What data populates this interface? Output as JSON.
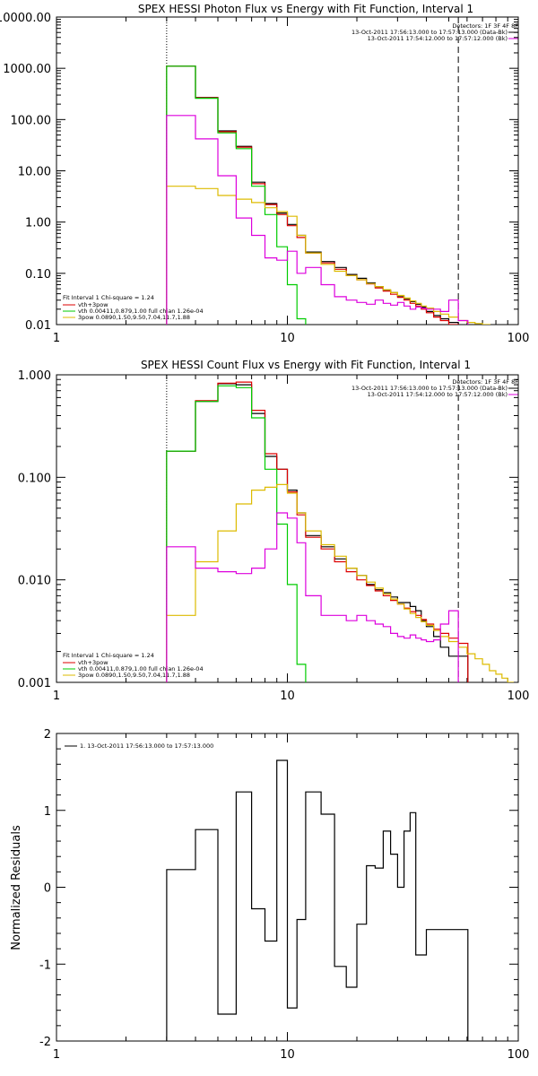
{
  "chart_data": [
    {
      "type": "line",
      "title": "SPEX HESSI Photon Flux vs Energy with Fit Function, Interval 1",
      "xscale": "log",
      "yscale": "log",
      "xlim": [
        1,
        100
      ],
      "ylim": [
        0.01,
        10000
      ],
      "xticks": [
        1,
        10,
        100
      ],
      "xtick_labels": [
        "1",
        "10",
        "100"
      ],
      "yticks": [
        0.01,
        0.1,
        1,
        10,
        100,
        1000,
        10000
      ],
      "ytick_labels": [
        "0.01",
        "0.10",
        "1.00",
        "10.00",
        "100.00",
        "1000.00",
        "10000.00"
      ],
      "vlines": [
        {
          "x": 3,
          "style": "dotted"
        },
        {
          "x": 55,
          "style": "dashed"
        }
      ],
      "legend_top_right": [
        "Detectors: 1F 3F 4F 8F",
        "13-Oct-2011 17:56:13.000 to 17:57:13.000 (Data-Bk)",
        "13-Oct-2011 17:54:12.000 to 17:57:12.000 (Bk)"
      ],
      "legend_bottom_left": [
        "Fit Interval 1   Chi-square = 1.24",
        "vth+3pow",
        "vth 0.00411,0.879,1.00   full chian 1.26e-04",
        "3pow 0.0890,1.50,9.50,7.04,11.7,1.88"
      ],
      "series": [
        {
          "name": "13-Oct-2011 17:56:13.000 to 17:57:13.000 (Data-Bk)",
          "color": "#000000",
          "x": [
            3,
            4,
            5,
            6,
            7,
            8,
            9,
            10,
            11,
            12,
            14,
            16,
            18,
            20,
            22,
            24,
            26,
            28,
            30,
            32,
            34,
            36,
            38,
            40,
            43,
            46,
            50,
            55
          ],
          "y": [
            1100,
            270,
            60,
            30,
            6.0,
            2.3,
            1.5,
            0.9,
            0.55,
            0.26,
            0.17,
            0.13,
            0.095,
            0.08,
            0.065,
            0.055,
            0.047,
            0.042,
            0.036,
            0.032,
            0.028,
            0.025,
            0.022,
            0.018,
            0.015,
            0.013,
            0.011,
            0.009
          ]
        },
        {
          "name": "vth+3pow",
          "color": "#dd0000",
          "x": [
            3,
            4,
            5,
            6,
            7,
            8,
            9,
            10,
            11,
            12,
            14,
            16,
            18,
            20,
            22,
            24,
            26,
            28,
            30,
            32,
            34,
            36,
            38,
            40,
            43,
            46,
            50,
            55
          ],
          "y": [
            1100,
            265,
            58,
            29,
            5.6,
            2.2,
            1.4,
            0.85,
            0.5,
            0.25,
            0.16,
            0.12,
            0.09,
            0.075,
            0.062,
            0.052,
            0.045,
            0.039,
            0.034,
            0.03,
            0.026,
            0.023,
            0.02,
            0.017,
            0.014,
            0.012,
            0.01,
            0.009
          ]
        },
        {
          "name": "vth 0.00411,0.879,1.00   full chian 1.26e-04",
          "color": "#00cc00",
          "x": [
            3,
            4,
            5,
            6,
            7,
            8,
            9,
            10,
            11,
            12
          ],
          "y": [
            1100,
            260,
            55,
            27,
            5.0,
            1.4,
            0.33,
            0.06,
            0.013,
            0.005
          ]
        },
        {
          "name": "3pow 0.0890,1.50,9.50,7.04,11.7,1.88",
          "color": "#ddbb00",
          "x": [
            3,
            4,
            5,
            6,
            7,
            8,
            9,
            10,
            11,
            12,
            14,
            16,
            18,
            20,
            22,
            24,
            26,
            28,
            30,
            32,
            34,
            36,
            38,
            40,
            43,
            46,
            50,
            55,
            60,
            65,
            70
          ],
          "y": [
            5.0,
            4.5,
            3.3,
            2.8,
            2.4,
            1.9,
            1.6,
            1.3,
            0.55,
            0.25,
            0.15,
            0.11,
            0.09,
            0.075,
            0.063,
            0.055,
            0.048,
            0.042,
            0.037,
            0.033,
            0.029,
            0.026,
            0.023,
            0.021,
            0.018,
            0.016,
            0.014,
            0.012,
            0.011,
            0.0105,
            0.01
          ]
        },
        {
          "name": "13-Oct-2011 17:54:12.000 to 17:57:12.000 (Bk)",
          "color": "#dd00dd",
          "x": [
            3,
            4,
            5,
            6,
            7,
            8,
            9,
            10,
            11,
            12,
            14,
            16,
            18,
            20,
            22,
            24,
            26,
            28,
            30,
            32,
            34,
            36,
            38,
            40,
            43,
            46,
            50,
            55
          ],
          "y": [
            120,
            42,
            8.0,
            1.2,
            0.55,
            0.2,
            0.18,
            0.27,
            0.1,
            0.13,
            0.06,
            0.035,
            0.03,
            0.027,
            0.025,
            0.03,
            0.026,
            0.024,
            0.027,
            0.023,
            0.02,
            0.022,
            0.021,
            0.02,
            0.02,
            0.018,
            0.03,
            0.012
          ]
        }
      ]
    },
    {
      "type": "line",
      "title": "SPEX HESSI Count Flux vs Energy with Fit Function, Interval 1",
      "xscale": "log",
      "yscale": "log",
      "xlim": [
        1,
        100
      ],
      "ylim": [
        0.001,
        1.0
      ],
      "xticks": [
        1,
        10,
        100
      ],
      "xtick_labels": [
        "1",
        "10",
        "100"
      ],
      "yticks": [
        0.001,
        0.01,
        0.1,
        1.0
      ],
      "ytick_labels": [
        "0.001",
        "0.010",
        "0.100",
        "1.000"
      ],
      "vlines": [
        {
          "x": 3,
          "style": "dotted"
        },
        {
          "x": 55,
          "style": "dashed"
        }
      ],
      "legend_top_right": [
        "Detectors: 1F 3F 4F 8F",
        "13-Oct-2011 17:56:13.000 to 17:57:13.000 (Data-Bk)",
        "13-Oct-2011 17:54:12.000 to 17:57:12.000 (Bk)"
      ],
      "legend_bottom_left": [
        "Fit Interval 1   Chi-square = 1.24",
        "vth+3pow",
        "vth 0.00411,0.879,1.00   full chian 1.26e-04",
        "3pow 0.0890,1.50,9.50,7.04,11.7,1.88"
      ],
      "series": [
        {
          "name": "13-Oct-2011 17:56:13.000 to 17:57:13.000 (Data-Bk)",
          "color": "#000000",
          "x": [
            3,
            4,
            5,
            6,
            7,
            8,
            9,
            10,
            11,
            12,
            14,
            16,
            18,
            20,
            22,
            24,
            26,
            28,
            30,
            32,
            34,
            36,
            38,
            40,
            43,
            46,
            50,
            55
          ],
          "y": [
            0.18,
            0.55,
            0.82,
            0.8,
            0.42,
            0.16,
            0.12,
            0.075,
            0.045,
            0.027,
            0.021,
            0.016,
            0.013,
            0.011,
            0.009,
            0.008,
            0.0075,
            0.0068,
            0.006,
            0.006,
            0.0055,
            0.005,
            0.004,
            0.0035,
            0.0028,
            0.0022,
            0.0018,
            0.0018
          ]
        },
        {
          "name": "vth+3pow",
          "color": "#dd0000",
          "x": [
            3,
            4,
            5,
            6,
            7,
            8,
            9,
            10,
            11,
            12,
            14,
            16,
            18,
            20,
            22,
            24,
            26,
            28,
            30,
            32,
            34,
            36,
            38,
            40,
            43,
            46,
            50,
            55
          ],
          "y": [
            0.18,
            0.56,
            0.83,
            0.85,
            0.45,
            0.17,
            0.12,
            0.072,
            0.043,
            0.026,
            0.02,
            0.015,
            0.012,
            0.01,
            0.0088,
            0.0078,
            0.007,
            0.0063,
            0.0058,
            0.0053,
            0.0049,
            0.0045,
            0.0041,
            0.0037,
            0.0033,
            0.003,
            0.0027,
            0.0024
          ]
        },
        {
          "name": "vth 0.00411,0.879,1.00   full chian 1.26e-04",
          "color": "#00cc00",
          "x": [
            3,
            4,
            5,
            6,
            7,
            8,
            9,
            10,
            11,
            12
          ],
          "y": [
            0.18,
            0.55,
            0.78,
            0.75,
            0.38,
            0.12,
            0.035,
            0.009,
            0.0015,
            0.0005
          ]
        },
        {
          "name": "3pow 0.0890,1.50,9.50,7.04,11.7,1.88",
          "color": "#ddbb00",
          "x": [
            3,
            4,
            5,
            6,
            7,
            8,
            9,
            10,
            11,
            12,
            14,
            16,
            18,
            20,
            22,
            24,
            26,
            28,
            30,
            32,
            34,
            36,
            38,
            40,
            43,
            46,
            50,
            55,
            60,
            65,
            70,
            75,
            80,
            85,
            90,
            95
          ],
          "y": [
            0.0045,
            0.015,
            0.03,
            0.055,
            0.075,
            0.08,
            0.085,
            0.07,
            0.045,
            0.03,
            0.022,
            0.017,
            0.013,
            0.011,
            0.0095,
            0.0083,
            0.0073,
            0.0065,
            0.0058,
            0.0052,
            0.0047,
            0.0043,
            0.0039,
            0.0036,
            0.0032,
            0.0028,
            0.0025,
            0.0022,
            0.0019,
            0.0017,
            0.0015,
            0.0013,
            0.0012,
            0.0011,
            0.001,
            0.0009
          ]
        },
        {
          "name": "13-Oct-2011 17:54:12.000 to 17:57:12.000 (Bk)",
          "color": "#dd00dd",
          "x": [
            3,
            4,
            5,
            6,
            7,
            8,
            9,
            10,
            11,
            12,
            14,
            16,
            18,
            20,
            22,
            24,
            26,
            28,
            30,
            32,
            34,
            36,
            38,
            40,
            43,
            46,
            50,
            55
          ],
          "y": [
            0.021,
            0.013,
            0.012,
            0.0115,
            0.013,
            0.02,
            0.045,
            0.04,
            0.023,
            0.007,
            0.0045,
            0.0045,
            0.004,
            0.0045,
            0.004,
            0.0037,
            0.0035,
            0.003,
            0.0028,
            0.0027,
            0.0029,
            0.0027,
            0.0026,
            0.0025,
            0.0026,
            0.0037,
            0.005,
            0.0005
          ]
        }
      ]
    },
    {
      "type": "line",
      "title": "",
      "ylabel": "Normalized Residuals",
      "xscale": "log",
      "yscale": "linear",
      "xlim": [
        1,
        100
      ],
      "ylim": [
        -2,
        2
      ],
      "xticks": [
        1,
        10,
        100
      ],
      "xtick_labels": [
        "1",
        "10",
        "100"
      ],
      "yticks": [
        -2,
        -1,
        0,
        1,
        2
      ],
      "ytick_labels": [
        "-2",
        "-1",
        "0",
        "1",
        "2"
      ],
      "legend": [
        "1. 13-Oct-2011 17:56:13.000 to 17:57:13.000"
      ],
      "series": [
        {
          "name": "1. 13-Oct-2011 17:56:13.000 to 17:57:13.000",
          "color": "#000000",
          "x": [
            3,
            4,
            5,
            6,
            7,
            8,
            9,
            10,
            11,
            12,
            14,
            16,
            18,
            20,
            22,
            24,
            26,
            28,
            30,
            32,
            34,
            36,
            38,
            40,
            43,
            46,
            50,
            55
          ],
          "y": [
            0.23,
            0.75,
            -1.65,
            1.24,
            -0.28,
            -0.7,
            1.65,
            -1.57,
            -0.42,
            1.24,
            0.95,
            -1.03,
            -1.3,
            -0.48,
            0.28,
            0.25,
            0.73,
            0.43,
            0.0,
            0.73,
            0.97,
            -0.88,
            -0.88,
            -0.55,
            -0.55,
            -0.55,
            -0.55,
            -0.55
          ]
        }
      ]
    }
  ]
}
